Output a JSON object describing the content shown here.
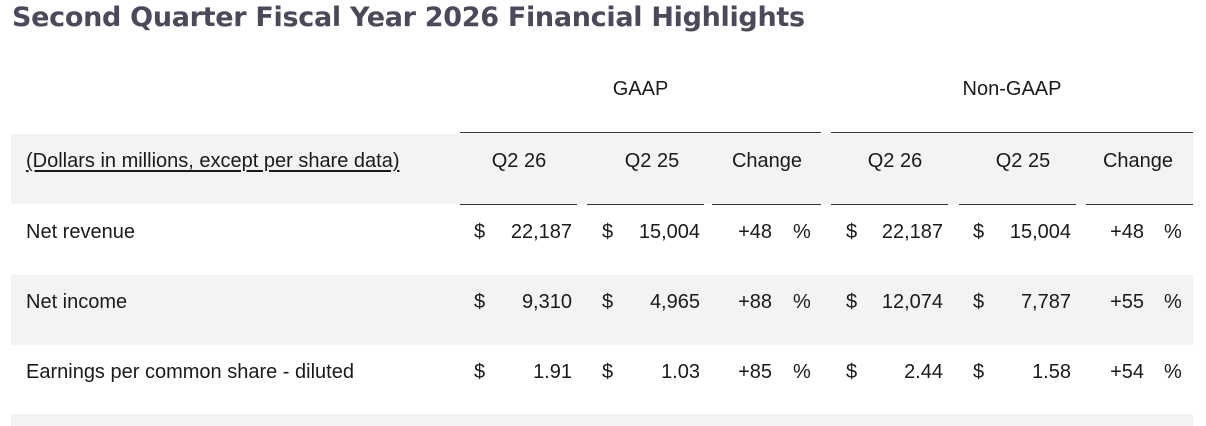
{
  "title": "Second Quarter Fiscal Year 2026 Financial Highlights",
  "groups": {
    "gaap": "GAAP",
    "non_gaap": "Non-GAAP"
  },
  "header": {
    "label": "(Dollars in millions, except per share data)",
    "columns": [
      "Q2 26",
      "Q2 25",
      "Change",
      "Q2 26",
      "Q2 25",
      "Change"
    ]
  },
  "rows": [
    {
      "label": "Net revenue",
      "gaap_q2_26": "22,187",
      "gaap_q2_25": "15,004",
      "gaap_change": "+48",
      "nongaap_q2_26": "22,187",
      "nongaap_q2_25": "15,004",
      "nongaap_change": "+48"
    },
    {
      "label": "Net income",
      "gaap_q2_26": "9,310",
      "gaap_q2_25": "4,965",
      "gaap_change": "+88",
      "nongaap_q2_26": "12,074",
      "nongaap_q2_25": "7,787",
      "nongaap_change": "+55"
    },
    {
      "label": "Earnings per common share - diluted",
      "gaap_q2_26": "1.91",
      "gaap_q2_25": "1.03",
      "gaap_change": "+85",
      "nongaap_q2_26": "2.44",
      "nongaap_q2_25": "1.58",
      "nongaap_change": "+54"
    }
  ],
  "symbols": {
    "currency": "$",
    "percent": "%"
  }
}
